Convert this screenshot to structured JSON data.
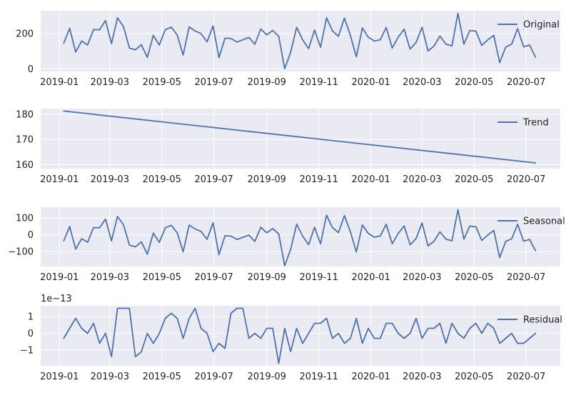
{
  "chart_data": [
    {
      "type": "line",
      "panel": "original",
      "legend": "Original",
      "legend_position": "upper right",
      "grid": true,
      "color": "#4c72b0",
      "x_start": "2019-01-06",
      "x_frequency": "weekly",
      "x_range": [
        "2018-12-10",
        "2020-08-10"
      ],
      "x_ticks": [
        "2019-01",
        "2019-03",
        "2019-05",
        "2019-07",
        "2019-09",
        "2019-11",
        "2020-01",
        "2020-03",
        "2020-05",
        "2020-07"
      ],
      "ylim": [
        -15,
        330
      ],
      "y_ticks": [
        0,
        200
      ],
      "values": [
        145,
        230,
        95,
        158,
        135,
        223,
        222,
        274,
        143,
        290,
        240,
        118,
        108,
        137,
        65,
        190,
        135,
        222,
        237,
        192,
        78,
        238,
        215,
        200,
        153,
        244,
        63,
        174,
        172,
        152,
        165,
        178,
        140,
        226,
        193,
        218,
        185,
        0,
        95,
        236,
        165,
        115,
        220,
        122,
        290,
        215,
        185,
        288,
        190,
        68,
        232,
        180,
        158,
        165,
        235,
        118,
        180,
        225,
        112,
        150,
        236,
        101,
        130,
        186,
        140,
        130,
        315,
        140,
        218,
        214,
        133,
        165,
        190,
        35,
        123,
        140,
        228,
        125,
        135,
        66
      ]
    },
    {
      "type": "line",
      "panel": "trend",
      "legend": "Trend",
      "legend_position": "upper right",
      "grid": true,
      "color": "#4c72b0",
      "x_start": "2019-01-06",
      "x_frequency": "weekly",
      "x_range": [
        "2018-12-10",
        "2020-08-10"
      ],
      "x_ticks": [
        "2019-01",
        "2019-03",
        "2019-05",
        "2019-07",
        "2019-09",
        "2019-11",
        "2020-01",
        "2020-03",
        "2020-05",
        "2020-07"
      ],
      "ylim": [
        158.4,
        182.3
      ],
      "y_ticks": [
        160,
        170,
        180
      ],
      "values": [
        181.34,
        160.69
      ]
    },
    {
      "type": "line",
      "panel": "seasonal",
      "legend": "Seasonal",
      "legend_position": "upper right",
      "grid": true,
      "color": "#4c72b0",
      "x_start": "2019-01-06",
      "x_frequency": "weekly",
      "x_range": [
        "2018-12-10",
        "2020-08-10"
      ],
      "x_ticks": [
        "2019-01",
        "2019-03",
        "2019-05",
        "2019-07",
        "2019-09",
        "2019-11",
        "2020-01",
        "2020-03",
        "2020-05",
        "2020-07"
      ],
      "ylim": [
        -190,
        165
      ],
      "y_ticks": [
        -100,
        0,
        100
      ],
      "values": [
        -36,
        49,
        -86,
        -23,
        -45,
        43,
        42,
        94,
        -37,
        110,
        60,
        -62,
        -72,
        -43,
        -116,
        10,
        -45,
        42,
        57,
        12,
        -102,
        58,
        35,
        20,
        -27,
        72,
        -119,
        -6,
        -8,
        -28,
        -15,
        -2,
        -40,
        45,
        12,
        37,
        5,
        -185,
        -86,
        63,
        -8,
        -59,
        45,
        -54,
        117,
        43,
        13,
        115,
        18,
        -103,
        59,
        8,
        -14,
        -7,
        63,
        -54,
        8,
        53,
        -60,
        -22,
        71,
        -67,
        -38,
        18,
        -26,
        -36,
        150,
        -26,
        52,
        48,
        -34,
        -2,
        26,
        -136,
        -40,
        -24,
        63,
        -38,
        -28,
        -96
      ]
    },
    {
      "type": "line",
      "panel": "residual",
      "legend": "Residual",
      "legend_position": "upper right",
      "grid": true,
      "color": "#4c72b0",
      "offset_label": "1e−13",
      "x_start": "2019-01-06",
      "x_frequency": "weekly",
      "x_range": [
        "2018-12-10",
        "2020-08-10"
      ],
      "x_ticks": [
        "2019-01",
        "2019-03",
        "2019-05",
        "2019-07",
        "2019-09",
        "2019-11",
        "2020-01",
        "2020-03",
        "2020-05",
        "2020-07"
      ],
      "ylim": [
        -1.95,
        1.65
      ],
      "y_ticks": [
        -1,
        0,
        1
      ],
      "values": [
        -0.3,
        0.3,
        0.9,
        0.3,
        0,
        0.6,
        -0.6,
        0,
        -1.4,
        1.5,
        1.5,
        1.5,
        -1.4,
        -1.1,
        0,
        -0.6,
        0,
        0.9,
        1.2,
        0.9,
        -0.3,
        0.9,
        1.5,
        0.3,
        0,
        -1.1,
        -0.6,
        -0.9,
        1.2,
        1.5,
        1.5,
        -0.3,
        0,
        -0.3,
        0.3,
        0.3,
        -1.8,
        0.3,
        -1.1,
        0.3,
        -0.6,
        0,
        0.6,
        0.6,
        0.9,
        -0.3,
        0,
        -0.6,
        -0.3,
        0.9,
        -0.6,
        0.3,
        -0.3,
        -0.3,
        0.6,
        0.6,
        0,
        -0.3,
        0,
        0.9,
        -0.3,
        0.3,
        0.3,
        0.6,
        -0.6,
        0.6,
        0,
        -0.3,
        0.3,
        0.6,
        0,
        0.6,
        0.3,
        -0.6,
        -0.3,
        0,
        -0.6,
        -0.6,
        -0.3,
        0
      ]
    }
  ]
}
